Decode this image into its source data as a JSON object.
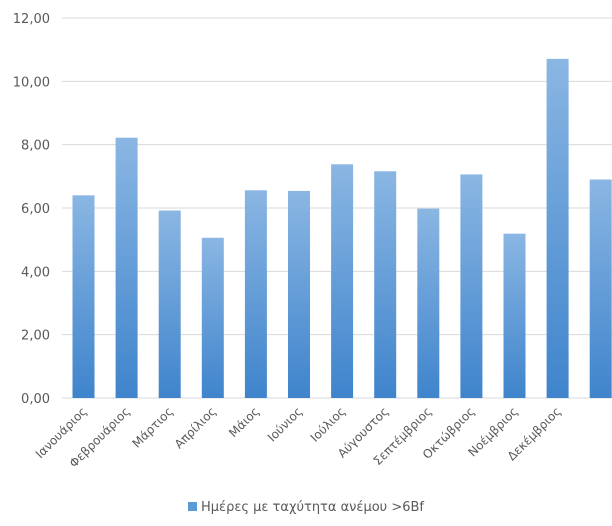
{
  "chart_data": {
    "type": "bar",
    "categories": [
      "Ιανουάριος",
      "Φεβρουάριος",
      "Μάρτιος",
      "Απρίλιος",
      "Μάιος",
      "Ιούνιος",
      "Ιούλιος",
      "Αύγουστος",
      "Σεπτέμβριος",
      "Οκτώβριος",
      "Νοέμβριος",
      "Δεκέμβριος",
      ""
    ],
    "series": [
      {
        "name": "Ημέρες με ταχύτητα ανέμου >6Bf",
        "values": [
          6.4,
          8.22,
          5.92,
          5.06,
          6.56,
          6.54,
          7.38,
          7.16,
          5.98,
          7.06,
          5.19,
          10.71,
          6.9
        ],
        "color": "#5b9bd5"
      }
    ],
    "yticks": [
      "0,00",
      "2,00",
      "4,00",
      "6,00",
      "8,00",
      "10,00",
      "12,00"
    ],
    "ylim": [
      0,
      12
    ],
    "grid": true,
    "legend_position": "bottom"
  }
}
